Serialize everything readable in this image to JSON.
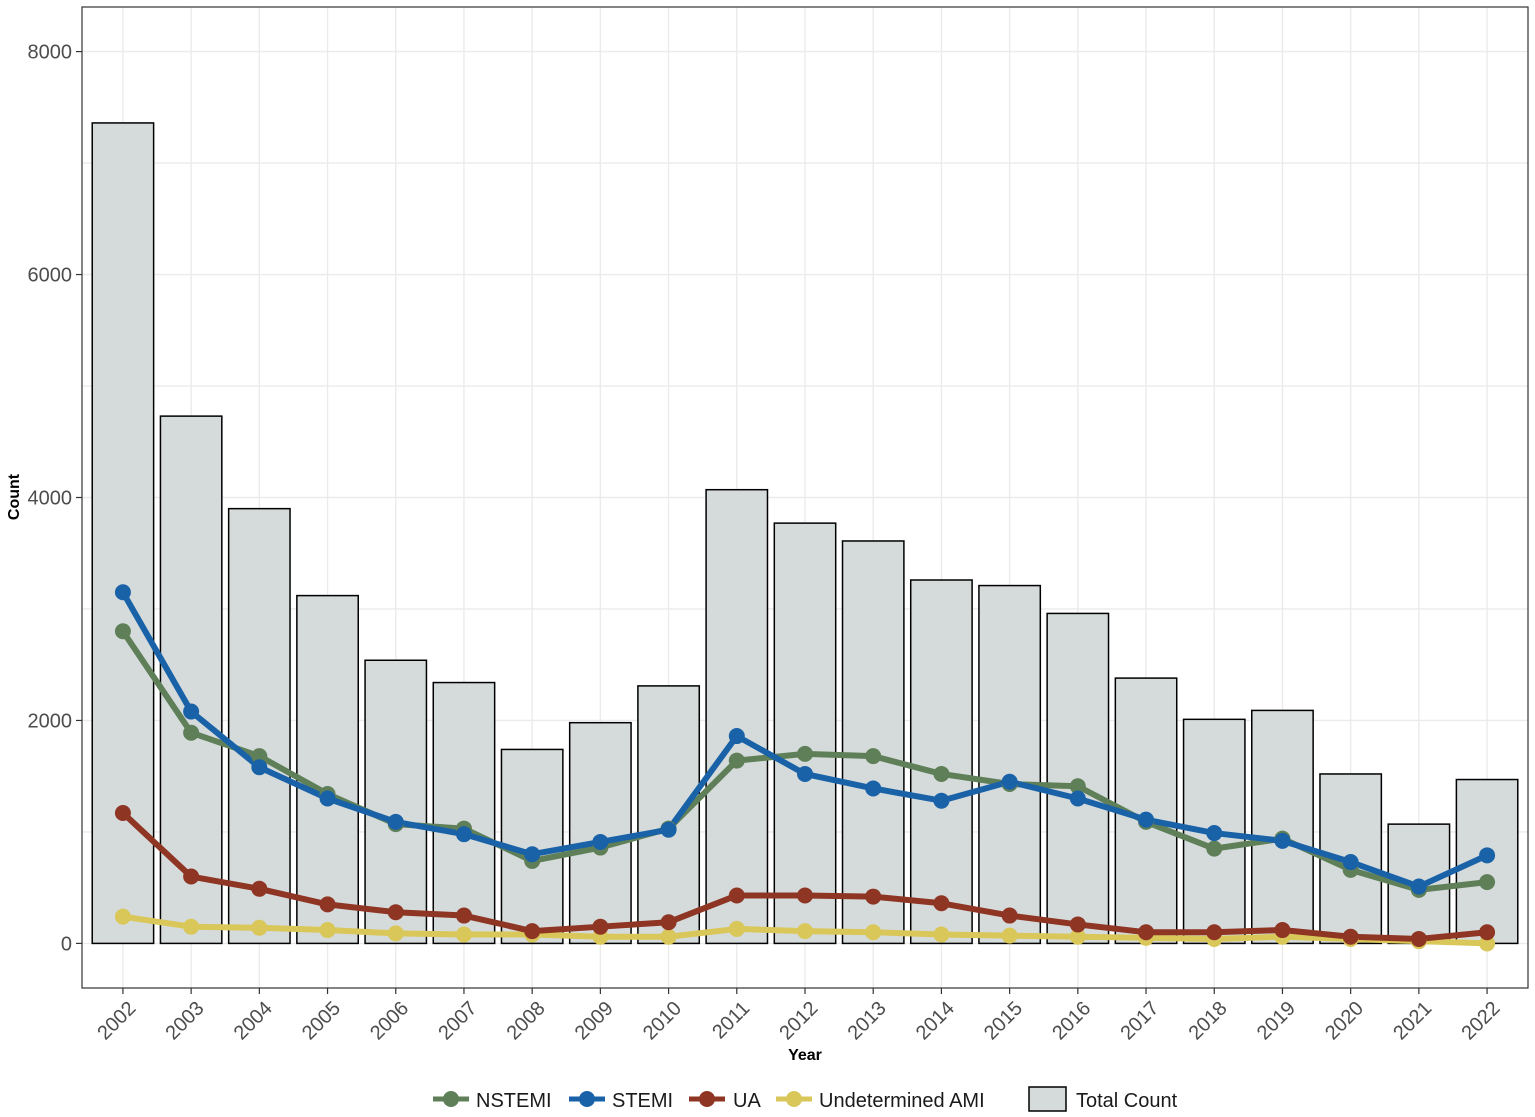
{
  "chart_data": {
    "type": "bar",
    "title": "",
    "xlabel": "Year",
    "ylabel": "Count",
    "ylim": [
      -400,
      8400
    ],
    "yticks": [
      0,
      2000,
      4000,
      6000,
      8000
    ],
    "yticks_labels": [
      "0",
      "2000",
      "4000",
      "6000",
      "8000"
    ],
    "categories": [
      "2002",
      "2003",
      "2004",
      "2005",
      "2006",
      "2007",
      "2008",
      "2009",
      "2010",
      "2011",
      "2012",
      "2013",
      "2014",
      "2015",
      "2016",
      "2017",
      "2018",
      "2019",
      "2020",
      "2021",
      "2022"
    ],
    "bars": {
      "name": "Total Count",
      "color": "#d5dbdb",
      "values": [
        7360,
        4730,
        3900,
        3120,
        2540,
        2340,
        1740,
        1980,
        2310,
        4070,
        3770,
        3610,
        3260,
        3210,
        2960,
        2380,
        2010,
        2090,
        1520,
        1070,
        1470
      ]
    },
    "series": [
      {
        "name": "NSTEMI",
        "color": "#5e7f58",
        "values": [
          2800,
          1890,
          1680,
          1340,
          1070,
          1030,
          740,
          860,
          1030,
          1640,
          1700,
          1680,
          1520,
          1430,
          1410,
          1090,
          850,
          940,
          660,
          480,
          550
        ]
      },
      {
        "name": "STEMI",
        "color": "#1a62a8",
        "values": [
          3150,
          2080,
          1580,
          1300,
          1090,
          980,
          800,
          910,
          1020,
          1860,
          1520,
          1390,
          1280,
          1450,
          1300,
          1110,
          990,
          920,
          730,
          510,
          790
        ]
      },
      {
        "name": "UA",
        "color": "#8e3524",
        "values": [
          1170,
          600,
          490,
          350,
          280,
          250,
          110,
          150,
          190,
          430,
          430,
          420,
          360,
          250,
          170,
          100,
          100,
          120,
          60,
          40,
          100
        ]
      },
      {
        "name": "Undetermined AMI",
        "color": "#d9c759",
        "values": [
          240,
          150,
          140,
          120,
          90,
          80,
          80,
          60,
          60,
          130,
          110,
          100,
          80,
          70,
          60,
          50,
          40,
          60,
          40,
          20,
          0
        ]
      }
    ],
    "legend": {
      "position": "bottom",
      "items": [
        "NSTEMI",
        "STEMI",
        "UA",
        "Undetermined AMI",
        "Total Count"
      ]
    },
    "grid": true
  }
}
